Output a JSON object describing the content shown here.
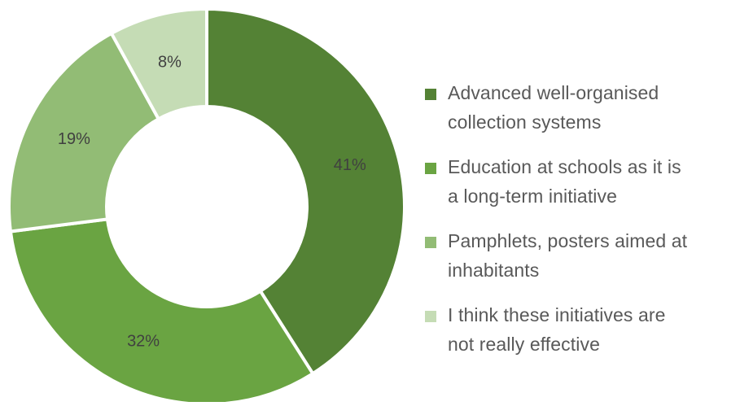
{
  "chart_data": {
    "type": "pie",
    "donut": true,
    "start_angle_deg": 0,
    "direction": "clockwise",
    "slices": [
      {
        "label": "Advanced well-organised collection systems",
        "value": 41,
        "display": "41%",
        "color": "#548235"
      },
      {
        "label": "Education at schools as it is a long-term initiative",
        "value": 32,
        "display": "32%",
        "color": "#6aa442"
      },
      {
        "label": "Pamphlets, posters aimed at inhabitants",
        "value": 19,
        "display": "19%",
        "color": "#92bc75"
      },
      {
        "label": "I think these initiatives are not really effective",
        "value": 8,
        "display": "8%",
        "color": "#c5dcb5"
      }
    ],
    "legend_placement": "right"
  },
  "legend": {
    "items": [
      {
        "lines": [
          "Advanced well-organised",
          "collection systems"
        ]
      },
      {
        "lines": [
          "Education at schools as it is",
          "a long-term initiative"
        ]
      },
      {
        "lines": [
          "Pamphlets, posters aimed at",
          "inhabitants"
        ]
      },
      {
        "lines": [
          "I think these initiatives are",
          "not really effective"
        ]
      }
    ]
  }
}
